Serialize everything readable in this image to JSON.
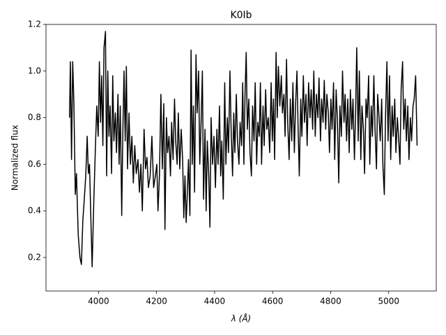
{
  "chart_data": {
    "type": "line",
    "title": "K0Ib",
    "x_label": "λ (Å)",
    "y_label": "Normalized flux",
    "color": "#000000",
    "xlim": [
      3819,
      5164
    ],
    "ylim": [
      0.056,
      1.2
    ],
    "xticks": [
      4000,
      4200,
      4400,
      4600,
      4800,
      5000
    ],
    "yticks": [
      0.2,
      0.4,
      0.6,
      0.8,
      {
        "value": 1.0,
        "label": "1.0"
      },
      1.2
    ],
    "x": [
      3900,
      3903,
      3907,
      3911,
      3915,
      3920,
      3924,
      3930,
      3936,
      3941,
      3946,
      3951,
      3956,
      3961,
      3965,
      3969,
      3974,
      3978,
      3984,
      3989,
      3994,
      3999,
      4003,
      4007,
      4011,
      4015,
      4019,
      4024,
      4028,
      4032,
      4036,
      4040,
      4045,
      4049,
      4053,
      4058,
      4062,
      4067,
      4071,
      4075,
      4080,
      4084,
      4088,
      4092,
      4096,
      4100,
      4105,
      4110,
      4115,
      4120,
      4125,
      4130,
      4136,
      4141,
      4146,
      4151,
      4157,
      4162,
      4167,
      4172,
      4178,
      4184,
      4190,
      4196,
      4201,
      4205,
      4210,
      4215,
      4220,
      4225,
      4229,
      4234,
      4238,
      4243,
      4248,
      4252,
      4257,
      4262,
      4266,
      4271,
      4275,
      4280,
      4285,
      4290,
      4294,
      4298,
      4302,
      4306,
      4310,
      4315,
      4319,
      4323,
      4327,
      4331,
      4336,
      4340,
      4345,
      4349,
      4354,
      4358,
      4362,
      4367,
      4371,
      4375,
      4380,
      4384,
      4388,
      4393,
      4398,
      4403,
      4408,
      4412,
      4417,
      4421,
      4425,
      4430,
      4435,
      4439,
      4444,
      4448,
      4453,
      4457,
      4462,
      4466,
      4470,
      4475,
      4479,
      4484,
      4488,
      4493,
      4497,
      4501,
      4505,
      4509,
      4513,
      4518,
      4522,
      4527,
      4531,
      4536,
      4540,
      4545,
      4549,
      4554,
      4558,
      4562,
      4567,
      4571,
      4576,
      4580,
      4585,
      4590,
      4595,
      4599,
      4603,
      4607,
      4612,
      4616,
      4620,
      4625,
      4630,
      4634,
      4639,
      4643,
      4648,
      4652,
      4657,
      4661,
      4666,
      4670,
      4675,
      4679,
      4684,
      4688,
      4692,
      4697,
      4701,
      4706,
      4710,
      4715,
      4719,
      4724,
      4729,
      4733,
      4738,
      4742,
      4747,
      4751,
      4756,
      4760,
      4765,
      4769,
      4774,
      4778,
      4783,
      4787,
      4792,
      4796,
      4801,
      4805,
      4810,
      4814,
      4819,
      4823,
      4828,
      4832,
      4837,
      4841,
      4846,
      4850,
      4855,
      4859,
      4864,
      4868,
      4873,
      4877,
      4882,
      4886,
      4890,
      4895,
      4899,
      4904,
      4908,
      4913,
      4917,
      4922,
      4926,
      4931,
      4935,
      4940,
      4944,
      4949,
      4953,
      4958,
      4962,
      4967,
      4971,
      4976,
      4980,
      4985,
      4989,
      4994,
      4998,
      5003,
      5007,
      5012,
      5016,
      5021,
      5025,
      5030,
      5034,
      5039,
      5043,
      5048,
      5052,
      5057,
      5061,
      5066,
      5070,
      5075,
      5079,
      5084,
      5088,
      5093,
      5098
    ],
    "series": [
      {
        "color": "#000000",
        "values": [
          0.8,
          1.04,
          0.62,
          1.04,
          0.87,
          0.47,
          0.56,
          0.3,
          0.2,
          0.17,
          0.36,
          0.45,
          0.55,
          0.72,
          0.56,
          0.6,
          0.35,
          0.16,
          0.45,
          0.66,
          0.85,
          0.72,
          1.04,
          0.78,
          0.98,
          0.68,
          1.1,
          1.17,
          0.55,
          1.0,
          0.72,
          0.85,
          0.56,
          0.98,
          0.7,
          0.82,
          0.65,
          0.9,
          0.6,
          0.85,
          0.38,
          0.75,
          1.0,
          0.7,
          1.02,
          0.58,
          0.82,
          0.6,
          0.72,
          0.52,
          0.68,
          0.56,
          0.62,
          0.48,
          0.6,
          0.4,
          0.75,
          0.58,
          0.63,
          0.5,
          0.55,
          0.72,
          0.5,
          0.55,
          0.6,
          0.4,
          0.55,
          0.9,
          0.58,
          0.86,
          0.32,
          0.8,
          0.65,
          0.72,
          0.55,
          0.78,
          0.62,
          0.88,
          0.7,
          0.6,
          0.82,
          0.58,
          0.75,
          0.62,
          0.37,
          0.55,
          0.35,
          0.47,
          0.62,
          0.38,
          1.09,
          0.6,
          0.85,
          0.48,
          1.07,
          0.82,
          1.0,
          0.6,
          0.8,
          1.0,
          0.45,
          0.75,
          0.4,
          0.7,
          0.55,
          0.33,
          0.8,
          0.6,
          0.72,
          0.5,
          0.75,
          0.6,
          0.85,
          0.55,
          0.7,
          0.45,
          0.95,
          0.6,
          0.8,
          0.65,
          1.0,
          0.75,
          0.55,
          0.82,
          0.65,
          0.9,
          0.7,
          0.6,
          0.78,
          0.68,
          0.95,
          0.6,
          0.9,
          1.08,
          0.75,
          0.88,
          0.65,
          0.55,
          0.85,
          0.7,
          0.95,
          0.6,
          0.78,
          0.72,
          0.95,
          0.6,
          0.85,
          0.68,
          0.92,
          0.75,
          0.8,
          0.65,
          0.95,
          0.7,
          0.88,
          0.62,
          1.08,
          0.8,
          1.02,
          0.85,
          0.98,
          0.82,
          0.9,
          0.72,
          1.05,
          0.78,
          0.62,
          0.88,
          0.7,
          0.95,
          0.65,
          0.85,
          1.0,
          0.75,
          0.55,
          0.88,
          0.72,
          0.98,
          0.78,
          0.9,
          0.68,
          0.95,
          0.8,
          0.92,
          0.75,
          1.0,
          0.72,
          0.9,
          0.8,
          0.97,
          0.7,
          0.88,
          0.78,
          0.96,
          0.75,
          0.9,
          0.82,
          0.65,
          0.88,
          0.75,
          0.95,
          0.62,
          0.92,
          0.8,
          0.52,
          0.85,
          0.72,
          1.0,
          0.78,
          0.9,
          0.7,
          0.88,
          0.65,
          0.92,
          0.75,
          0.88,
          0.62,
          0.82,
          1.1,
          0.7,
          1.0,
          0.62,
          0.85,
          0.75,
          0.56,
          0.88,
          0.8,
          0.98,
          0.6,
          0.85,
          0.72,
          0.98,
          0.75,
          0.58,
          0.9,
          0.8,
          0.7,
          0.88,
          0.6,
          0.47,
          0.8,
          1.04,
          0.7,
          0.98,
          0.62,
          0.85,
          0.72,
          0.88,
          0.65,
          0.8,
          0.72,
          0.6,
          0.92,
          1.04,
          0.75,
          0.88,
          0.7,
          0.85,
          0.62,
          0.8,
          0.7,
          0.85,
          0.88,
          0.98,
          0.68
        ]
      }
    ]
  }
}
